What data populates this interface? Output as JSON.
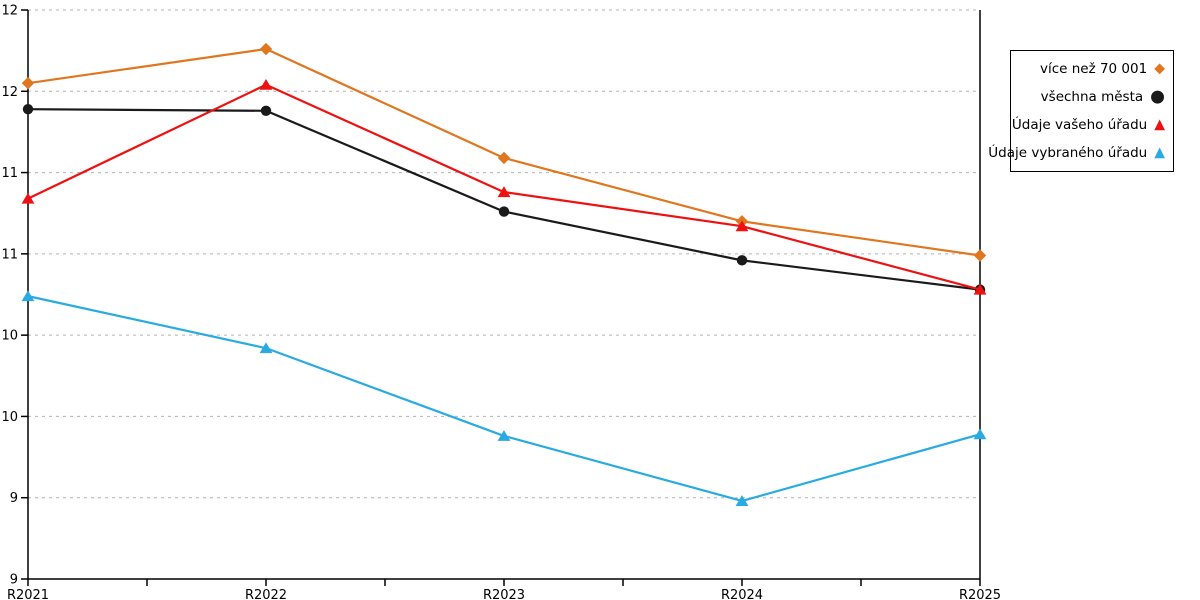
{
  "chart_data": {
    "type": "line",
    "title": "",
    "xlabel": "",
    "ylabel": "",
    "categories": [
      "R2021",
      "R2022",
      "R2023",
      "R2024",
      "R2025"
    ],
    "y_axis": {
      "min": 9,
      "max": 12.5,
      "tick_step": 0.5,
      "tick_labels_top_to_bottom": [
        "12",
        "12",
        "11",
        "11",
        "10",
        "10",
        "9",
        "9"
      ]
    },
    "grid": "horizontal-dashed",
    "legend_position": "outside-top-right",
    "series": [
      {
        "name": "více než 70 001",
        "marker": "diamond",
        "color": "#e0761e",
        "values": [
          12.05,
          12.26,
          11.59,
          11.2,
          10.99
        ]
      },
      {
        "name": "všechna města",
        "marker": "circle",
        "color": "#1a1a1a",
        "values": [
          11.89,
          11.88,
          11.26,
          10.96,
          10.78
        ]
      },
      {
        "name": "Údaje vašeho úřadu",
        "marker": "triangle",
        "color": "#ee1111",
        "values": [
          11.34,
          12.04,
          11.38,
          11.17,
          10.78
        ]
      },
      {
        "name": "Údaje vybraného úřadu",
        "marker": "triangle",
        "color": "#29abe2",
        "values": [
          10.74,
          10.42,
          9.88,
          9.48,
          9.89
        ]
      }
    ]
  },
  "colors": {
    "gridline": "#b3b3b3",
    "axis": "#000000",
    "background": "#ffffff"
  },
  "legend_marker_glyphs": {
    "diamond": "◆",
    "circle": "●",
    "triangle": "▲"
  }
}
